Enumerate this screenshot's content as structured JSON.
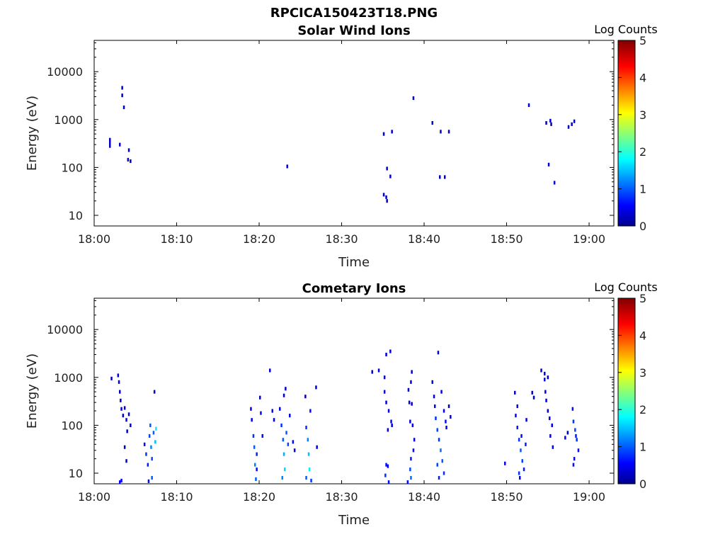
{
  "figure": {
    "title": "RPCICA150423T18.PNG"
  },
  "chart_data": [
    {
      "type": "heatmap",
      "title": "Solar Wind Ions",
      "xlabel": "Time",
      "ylabel": "Energy (eV)",
      "x_ticks": [
        "18:00",
        "18:10",
        "18:20",
        "18:30",
        "18:40",
        "18:50",
        "19:00"
      ],
      "x_range_minutes": [
        0,
        63
      ],
      "y_ticks": [
        10,
        100,
        1000,
        10000
      ],
      "y_tick_labels": [
        "10",
        "100",
        "1000",
        "10000"
      ],
      "y_scale": "log",
      "y_range": [
        6,
        45000
      ],
      "colorbar": {
        "label": "Log Counts",
        "range": [
          0,
          5
        ],
        "ticks": [
          "0",
          "1",
          "2",
          "3",
          "4",
          "5"
        ],
        "colormap": "jet"
      },
      "cells": [
        [
          1.8,
          380,
          0.3
        ],
        [
          1.8,
          330,
          0.3
        ],
        [
          1.8,
          280,
          0.3
        ],
        [
          3.0,
          300,
          0.3
        ],
        [
          3.3,
          4600,
          0.3
        ],
        [
          3.3,
          3200,
          0.3
        ],
        [
          3.5,
          1800,
          0.3
        ],
        [
          4.1,
          230,
          0.3
        ],
        [
          4.0,
          145,
          0.3
        ],
        [
          4.3,
          135,
          0.3
        ],
        [
          23.3,
          105,
          0.3
        ],
        [
          35.0,
          500,
          0.3
        ],
        [
          35.0,
          27,
          0.3
        ],
        [
          35.3,
          24,
          0.3
        ],
        [
          35.4,
          20,
          0.3
        ],
        [
          35.4,
          95,
          0.3
        ],
        [
          35.8,
          65,
          0.3
        ],
        [
          36.0,
          560,
          0.3
        ],
        [
          38.6,
          2800,
          0.3
        ],
        [
          40.9,
          850,
          0.3
        ],
        [
          41.9,
          560,
          0.3
        ],
        [
          42.9,
          560,
          0.3
        ],
        [
          41.8,
          63,
          0.3
        ],
        [
          42.4,
          63,
          0.3
        ],
        [
          52.6,
          2000,
          0.3
        ],
        [
          54.7,
          850,
          0.3
        ],
        [
          55.2,
          950,
          0.3
        ],
        [
          55.3,
          800,
          0.3
        ],
        [
          55.0,
          115,
          0.3
        ],
        [
          55.7,
          48,
          0.3
        ],
        [
          57.4,
          700,
          0.3
        ],
        [
          57.8,
          800,
          0.3
        ],
        [
          58.1,
          920,
          0.3
        ]
      ]
    },
    {
      "type": "heatmap",
      "title": "Cometary Ions",
      "xlabel": "Time",
      "ylabel": "Energy (eV)",
      "x_ticks": [
        "18:00",
        "18:10",
        "18:20",
        "18:30",
        "18:40",
        "18:50",
        "19:00"
      ],
      "x_range_minutes": [
        0,
        63
      ],
      "y_ticks": [
        10,
        100,
        1000,
        10000
      ],
      "y_tick_labels": [
        "10",
        "100",
        "1000",
        "10000"
      ],
      "y_scale": "log",
      "y_range": [
        6,
        45000
      ],
      "colorbar": {
        "label": "Log Counts",
        "range": [
          0,
          5
        ],
        "ticks": [
          "0",
          "1",
          "2",
          "3",
          "4",
          "5"
        ],
        "colormap": "jet"
      },
      "cells": [
        [
          2.0,
          950,
          0.3
        ],
        [
          2.8,
          1100,
          0.3
        ],
        [
          2.9,
          800,
          0.4
        ],
        [
          3.0,
          500,
          0.3
        ],
        [
          3.1,
          330,
          0.3
        ],
        [
          3.2,
          220,
          0.4
        ],
        [
          3.4,
          160,
          0.3
        ],
        [
          3.6,
          230,
          0.4
        ],
        [
          3.8,
          130,
          0.3
        ],
        [
          3.9,
          75,
          0.3
        ],
        [
          4.1,
          170,
          0.4
        ],
        [
          4.3,
          100,
          0.3
        ],
        [
          3.6,
          35,
          0.3
        ],
        [
          3.8,
          18,
          0.3
        ],
        [
          3.0,
          6.5,
          0.5
        ],
        [
          3.2,
          7.0,
          0.5
        ],
        [
          6.0,
          40,
          0.6
        ],
        [
          6.2,
          25,
          0.8
        ],
        [
          6.4,
          15,
          0.7
        ],
        [
          6.6,
          60,
          0.9
        ],
        [
          6.7,
          100,
          1.0
        ],
        [
          6.8,
          35,
          1.2
        ],
        [
          6.9,
          20,
          0.9
        ],
        [
          7.1,
          70,
          1.0
        ],
        [
          7.3,
          45,
          1.5
        ],
        [
          7.4,
          85,
          1.7
        ],
        [
          7.2,
          500,
          0.3
        ],
        [
          6.5,
          6.8,
          0.6
        ],
        [
          6.9,
          8.0,
          1.0
        ],
        [
          18.9,
          220,
          0.5
        ],
        [
          19.0,
          130,
          0.5
        ],
        [
          19.2,
          60,
          0.8
        ],
        [
          19.3,
          35,
          1.0
        ],
        [
          19.4,
          15,
          1.2
        ],
        [
          19.5,
          7.5,
          1.0
        ],
        [
          19.6,
          25,
          0.7
        ],
        [
          20.0,
          380,
          0.3
        ],
        [
          20.1,
          180,
          0.6
        ],
        [
          20.3,
          60,
          0.5
        ],
        [
          19.6,
          12,
          0.6
        ],
        [
          22.4,
          220,
          0.5
        ],
        [
          22.6,
          100,
          0.8
        ],
        [
          22.8,
          50,
          1.0
        ],
        [
          22.9,
          25,
          1.4
        ],
        [
          23.0,
          12,
          1.6
        ],
        [
          22.7,
          8,
          1.2
        ],
        [
          23.2,
          70,
          1.0
        ],
        [
          23.4,
          40,
          0.9
        ],
        [
          23.6,
          160,
          0.5
        ],
        [
          23.1,
          580,
          0.3
        ],
        [
          22.9,
          420,
          0.3
        ],
        [
          24.0,
          45,
          0.6
        ],
        [
          24.2,
          30,
          0.5
        ],
        [
          21.5,
          200,
          0.4
        ],
        [
          21.7,
          130,
          0.3
        ],
        [
          25.6,
          90,
          0.8
        ],
        [
          25.8,
          50,
          1.2
        ],
        [
          25.9,
          25,
          1.5
        ],
        [
          26.0,
          12,
          1.7
        ],
        [
          26.1,
          200,
          0.6
        ],
        [
          25.6,
          8,
          1.0
        ],
        [
          26.2,
          7,
          0.8
        ],
        [
          26.9,
          35,
          0.5
        ],
        [
          21.2,
          1400,
          0.3
        ],
        [
          26.8,
          620,
          0.3
        ],
        [
          25.5,
          400,
          0.3
        ],
        [
          33.6,
          1300,
          0.3
        ],
        [
          34.4,
          1400,
          0.3
        ],
        [
          35.1,
          1000,
          0.3
        ],
        [
          35.3,
          3000,
          0.3
        ],
        [
          35.8,
          3500,
          0.3
        ],
        [
          35.1,
          500,
          0.4
        ],
        [
          35.3,
          300,
          0.3
        ],
        [
          35.6,
          200,
          0.4
        ],
        [
          35.9,
          120,
          0.5
        ],
        [
          35.5,
          80,
          0.4
        ],
        [
          35.3,
          15,
          0.6
        ],
        [
          35.2,
          9,
          0.8
        ],
        [
          35.6,
          6.5,
          0.6
        ],
        [
          36.0,
          100,
          0.4
        ],
        [
          35.5,
          14,
          0.5
        ],
        [
          38.4,
          1300,
          0.3
        ],
        [
          38.3,
          800,
          0.4
        ],
        [
          38.0,
          550,
          0.3
        ],
        [
          38.4,
          280,
          0.3
        ],
        [
          38.2,
          120,
          0.4
        ],
        [
          38.5,
          100,
          0.5
        ],
        [
          38.7,
          50,
          0.4
        ],
        [
          38.3,
          20,
          0.7
        ],
        [
          38.2,
          12,
          0.9
        ],
        [
          37.9,
          6.5,
          0.6
        ],
        [
          38.3,
          8,
          1.1
        ],
        [
          38.6,
          30,
          0.6
        ],
        [
          38.1,
          300,
          0.3
        ],
        [
          40.9,
          800,
          0.3
        ],
        [
          41.1,
          400,
          0.5
        ],
        [
          41.2,
          250,
          0.6
        ],
        [
          41.3,
          140,
          0.8
        ],
        [
          41.5,
          80,
          0.9
        ],
        [
          41.7,
          50,
          0.8
        ],
        [
          41.9,
          30,
          1.1
        ],
        [
          42.1,
          18,
          1.0
        ],
        [
          42.3,
          10,
          0.8
        ],
        [
          41.6,
          3300,
          0.3
        ],
        [
          42.0,
          500,
          0.4
        ],
        [
          42.3,
          200,
          0.5
        ],
        [
          42.5,
          120,
          0.6
        ],
        [
          42.6,
          90,
          0.5
        ],
        [
          41.5,
          15,
          0.9
        ],
        [
          41.7,
          8,
          0.7
        ],
        [
          42.9,
          250,
          0.3
        ],
        [
          43.1,
          150,
          0.4
        ],
        [
          49.7,
          16,
          0.5
        ],
        [
          50.9,
          480,
          0.3
        ],
        [
          51.0,
          160,
          0.6
        ],
        [
          51.2,
          90,
          0.7
        ],
        [
          51.4,
          50,
          0.8
        ],
        [
          51.6,
          30,
          1.0
        ],
        [
          51.8,
          18,
          0.9
        ],
        [
          52.0,
          12,
          0.7
        ],
        [
          51.7,
          60,
          0.6
        ],
        [
          52.2,
          40,
          0.7
        ],
        [
          51.4,
          10,
          0.8
        ],
        [
          52.3,
          130,
          0.3
        ],
        [
          51.2,
          250,
          0.4
        ],
        [
          51.5,
          8,
          0.5
        ],
        [
          53.0,
          480,
          0.3
        ],
        [
          53.2,
          380,
          0.3
        ],
        [
          54.1,
          1400,
          0.3
        ],
        [
          54.5,
          1200,
          0.3
        ],
        [
          54.5,
          900,
          0.4
        ],
        [
          54.6,
          500,
          0.4
        ],
        [
          54.7,
          330,
          0.4
        ],
        [
          54.9,
          200,
          0.3
        ],
        [
          55.1,
          140,
          0.4
        ],
        [
          55.4,
          100,
          0.4
        ],
        [
          55.2,
          60,
          0.5
        ],
        [
          55.5,
          35,
          0.5
        ],
        [
          54.9,
          1000,
          0.3
        ],
        [
          57.0,
          55,
          0.4
        ],
        [
          57.3,
          70,
          0.3
        ],
        [
          57.9,
          220,
          0.6
        ],
        [
          58.0,
          120,
          0.8
        ],
        [
          58.2,
          80,
          0.9
        ],
        [
          58.4,
          50,
          0.8
        ],
        [
          58.6,
          30,
          0.6
        ],
        [
          58.1,
          20,
          0.5
        ],
        [
          58.3,
          60,
          0.7
        ],
        [
          58.0,
          15,
          0.6
        ]
      ]
    }
  ]
}
